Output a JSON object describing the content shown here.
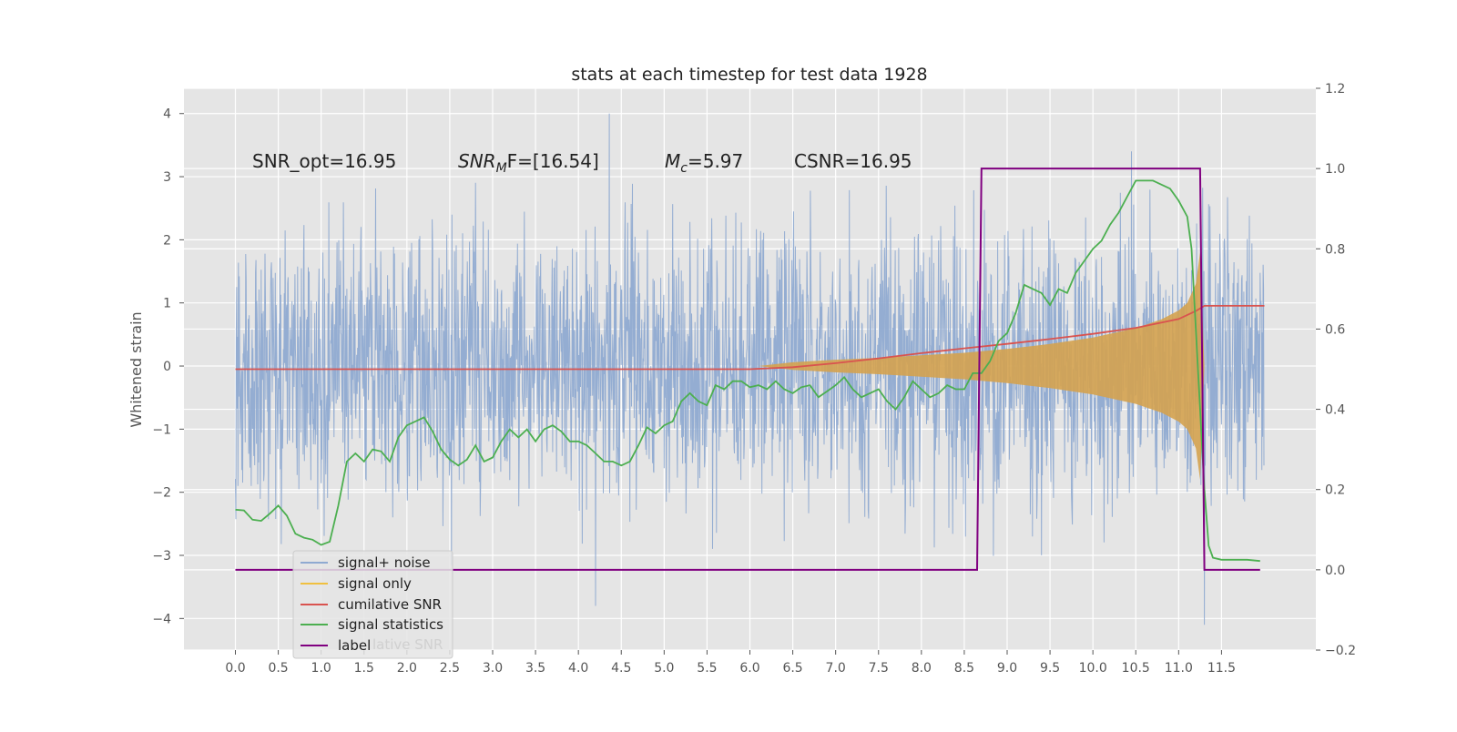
{
  "chart_data": {
    "type": "line",
    "title": "stats at each timestep for test data 1928",
    "ylabel": "Whitened strain",
    "xlim": [
      -0.6,
      12.6
    ],
    "ylim": [
      -4.5,
      4.4
    ],
    "y2lim": [
      -0.2,
      1.2
    ],
    "grid": true,
    "legend_position": "lower-left",
    "colors": {
      "background": "#e5e5e5",
      "grid": "#ffffff",
      "signal_noise": "#8faad1",
      "signal_only": "#d4a24f",
      "cumulative_snr": "#d9534f",
      "signal_statistics": "#4caf50",
      "label": "#800080"
    },
    "x_ticks": [
      0.0,
      0.5,
      1.0,
      1.5,
      2.0,
      2.5,
      3.0,
      3.5,
      4.0,
      4.5,
      5.0,
      5.5,
      6.0,
      6.5,
      7.0,
      7.5,
      8.0,
      8.5,
      9.0,
      9.5,
      10.0,
      10.5,
      11.0,
      11.5
    ],
    "x_tick_labels": [
      "0.0",
      "0.5",
      "1.0",
      "1.5",
      "2.0",
      "2.5",
      "3.0",
      "3.5",
      "4.0",
      "4.5",
      "5.0",
      "5.5",
      "6.0",
      "6.5",
      "7.0",
      "7.5",
      "8.0",
      "8.5",
      "9.0",
      "9.5",
      "10.0",
      "10.5",
      "11.0",
      "11.5"
    ],
    "y_ticks": [
      4,
      3,
      2,
      1,
      0,
      -1,
      -2,
      -3,
      -4
    ],
    "y_tick_labels": [
      "4",
      "3",
      "2",
      "1",
      "0",
      "−1",
      "−2",
      "−3",
      "−4"
    ],
    "y2_ticks": [
      1.2,
      1.0,
      0.8,
      0.6,
      0.4,
      0.2,
      0.0,
      -0.2
    ],
    "y2_tick_labels": [
      "1.2",
      "1.0",
      "0.8",
      "0.6",
      "0.4",
      "0.2",
      "0.0",
      "−0.2"
    ],
    "annotations": {
      "snr_opt": "SNR_opt=16.95",
      "snr_mf_main": "SNR",
      "snr_mf_sub": "M",
      "snr_mf_rest": "F=[16.54]",
      "mc_main": "M",
      "mc_sub": "c",
      "mc_rest": "=5.97",
      "csnr": "CSNR=16.95"
    },
    "legend": [
      "signal+ noise",
      "signal only",
      "cumilative SNR",
      "signal statistics",
      "label"
    ],
    "legend_ghost_text": "lative SNR",
    "series": [
      {
        "name": "signal+ noise",
        "axis": "left",
        "x_range": [
          0.0,
          12.0
        ],
        "envelope_upper_approx": 2.6,
        "envelope_lower_approx": -2.6,
        "extreme_peaks": [
          [
            4.36,
            4.0
          ],
          [
            11.3,
            -4.1
          ],
          [
            4.2,
            -3.8
          ],
          [
            10.45,
            3.4
          ]
        ]
      },
      {
        "name": "signal only",
        "axis": "left",
        "x": [
          6.1,
          6.5,
          7.0,
          7.5,
          8.0,
          8.5,
          9.0,
          9.5,
          10.0,
          10.5,
          10.8,
          11.0,
          11.1,
          11.2,
          11.25,
          11.3,
          12.0
        ],
        "amplitude": [
          0.0,
          0.06,
          0.1,
          0.13,
          0.17,
          0.21,
          0.27,
          0.35,
          0.45,
          0.6,
          0.74,
          0.88,
          1.0,
          1.3,
          1.8,
          0.0,
          0.0
        ]
      },
      {
        "name": "cumilative SNR",
        "axis": "right",
        "x": [
          0.0,
          6.0,
          6.5,
          7.0,
          7.5,
          8.0,
          8.5,
          9.0,
          9.5,
          10.0,
          10.5,
          11.0,
          11.2,
          11.3,
          12.0
        ],
        "y": [
          0.5,
          0.5,
          0.505,
          0.515,
          0.527,
          0.54,
          0.552,
          0.563,
          0.575,
          0.588,
          0.603,
          0.625,
          0.645,
          0.658,
          0.658
        ]
      },
      {
        "name": "signal statistics",
        "axis": "right",
        "x": [
          0.0,
          0.1,
          0.2,
          0.3,
          0.4,
          0.5,
          0.6,
          0.7,
          0.8,
          0.9,
          1.0,
          1.1,
          1.2,
          1.3,
          1.4,
          1.5,
          1.6,
          1.7,
          1.8,
          1.9,
          2.0,
          2.1,
          2.2,
          2.3,
          2.4,
          2.5,
          2.6,
          2.7,
          2.8,
          2.9,
          3.0,
          3.1,
          3.2,
          3.3,
          3.4,
          3.5,
          3.6,
          3.7,
          3.8,
          3.9,
          4.0,
          4.1,
          4.2,
          4.3,
          4.4,
          4.5,
          4.6,
          4.7,
          4.8,
          4.9,
          5.0,
          5.1,
          5.2,
          5.3,
          5.4,
          5.5,
          5.6,
          5.7,
          5.8,
          5.9,
          6.0,
          6.1,
          6.2,
          6.3,
          6.4,
          6.5,
          6.6,
          6.7,
          6.8,
          6.9,
          7.0,
          7.1,
          7.2,
          7.3,
          7.4,
          7.5,
          7.6,
          7.7,
          7.8,
          7.9,
          8.0,
          8.1,
          8.2,
          8.3,
          8.4,
          8.5,
          8.6,
          8.7,
          8.8,
          8.9,
          9.0,
          9.1,
          9.2,
          9.3,
          9.4,
          9.5,
          9.6,
          9.7,
          9.8,
          9.9,
          10.0,
          10.1,
          10.2,
          10.3,
          10.4,
          10.5,
          10.6,
          10.7,
          10.8,
          10.9,
          11.0,
          11.1,
          11.15,
          11.2,
          11.25,
          11.3,
          11.35,
          11.4,
          11.5,
          11.6,
          11.8,
          11.95
        ],
        "y": [
          0.15,
          0.148,
          0.125,
          0.122,
          0.14,
          0.16,
          0.135,
          0.09,
          0.08,
          0.075,
          0.062,
          0.07,
          0.16,
          0.27,
          0.29,
          0.27,
          0.3,
          0.295,
          0.27,
          0.33,
          0.36,
          0.37,
          0.38,
          0.345,
          0.3,
          0.275,
          0.26,
          0.275,
          0.31,
          0.27,
          0.28,
          0.32,
          0.35,
          0.33,
          0.35,
          0.32,
          0.35,
          0.36,
          0.345,
          0.32,
          0.32,
          0.31,
          0.29,
          0.27,
          0.27,
          0.26,
          0.27,
          0.31,
          0.355,
          0.34,
          0.36,
          0.37,
          0.42,
          0.44,
          0.42,
          0.41,
          0.46,
          0.45,
          0.47,
          0.47,
          0.455,
          0.46,
          0.45,
          0.47,
          0.45,
          0.44,
          0.455,
          0.46,
          0.43,
          0.445,
          0.46,
          0.48,
          0.45,
          0.43,
          0.44,
          0.45,
          0.42,
          0.4,
          0.43,
          0.47,
          0.45,
          0.43,
          0.44,
          0.46,
          0.45,
          0.45,
          0.49,
          0.49,
          0.52,
          0.57,
          0.59,
          0.64,
          0.71,
          0.7,
          0.69,
          0.66,
          0.7,
          0.69,
          0.74,
          0.77,
          0.8,
          0.82,
          0.86,
          0.89,
          0.93,
          0.97,
          0.97,
          0.97,
          0.96,
          0.95,
          0.92,
          0.88,
          0.8,
          0.6,
          0.4,
          0.2,
          0.06,
          0.03,
          0.025,
          0.025,
          0.025,
          0.022
        ]
      },
      {
        "name": "label",
        "axis": "right",
        "x": [
          0.0,
          8.65,
          8.7,
          11.25,
          11.3,
          11.95
        ],
        "y": [
          0.0,
          0.0,
          1.0,
          1.0,
          0.0,
          0.0
        ]
      }
    ]
  }
}
